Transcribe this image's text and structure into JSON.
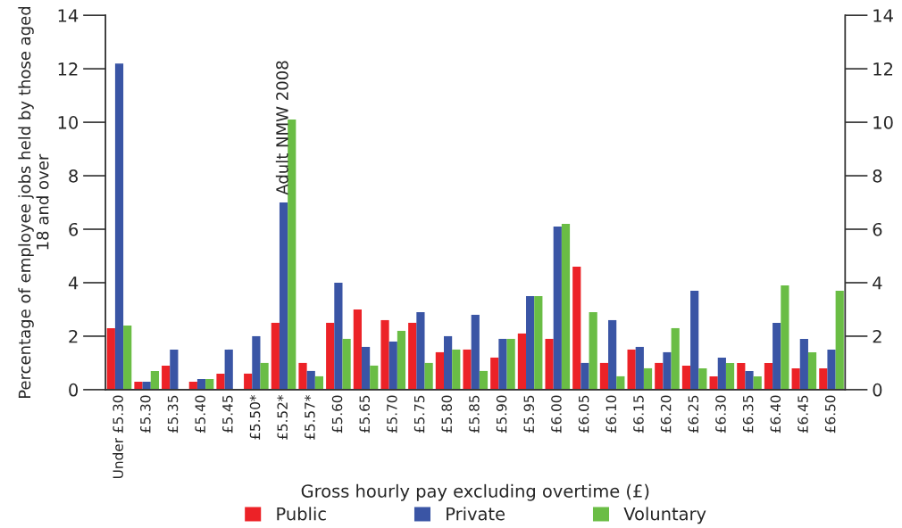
{
  "chart_data": {
    "type": "bar",
    "xlabel": "Gross hourly pay excluding overtime (£)",
    "ylabel": "Percentage of employee jobs held by those aged 18 and over",
    "categories": [
      "Under £5.30",
      "£5.30",
      "£5.35",
      "£5.40",
      "£5.45",
      "£5.50*",
      "£5.52*",
      "£5.57*",
      "£5.60",
      "£5.65",
      "£5.70",
      "£5.75",
      "£5.80",
      "£5.85",
      "£5.90",
      "£5.95",
      "£6.00",
      "£6.05",
      "£6.10",
      "£6.15",
      "£6.20",
      "£6.25",
      "£6.30",
      "£6.35",
      "£6.40",
      "£6.45",
      "£6.50"
    ],
    "series": [
      {
        "name": "Public",
        "color": "#ec2227",
        "values": [
          2.3,
          0.3,
          0.9,
          0.3,
          0.6,
          0.6,
          2.5,
          1.0,
          2.5,
          3.0,
          2.6,
          2.5,
          1.4,
          1.5,
          1.2,
          2.1,
          1.9,
          4.6,
          1.0,
          1.5,
          1.0,
          0.9,
          0.5,
          1.0,
          1.0,
          0.8,
          0.8
        ]
      },
      {
        "name": "Private",
        "color": "#3a55a5",
        "values": [
          12.2,
          0.3,
          1.5,
          0.4,
          1.5,
          2.0,
          7.0,
          0.7,
          4.0,
          1.6,
          1.8,
          2.9,
          2.0,
          2.8,
          1.9,
          3.5,
          6.1,
          1.0,
          2.6,
          1.6,
          1.4,
          3.7,
          1.2,
          0.7,
          2.5,
          1.9,
          1.5
        ]
      },
      {
        "name": "Voluntary",
        "color": "#6abd45",
        "values": [
          2.4,
          0.7,
          0,
          0.4,
          0,
          1.0,
          10.1,
          0.5,
          1.9,
          0.9,
          2.2,
          1.0,
          1.5,
          0.7,
          1.9,
          3.5,
          6.2,
          2.9,
          0.5,
          0.8,
          2.3,
          0.8,
          1.0,
          0.5,
          3.9,
          1.4,
          3.7
        ]
      }
    ],
    "annotations": [
      {
        "text": "Adult NMW 2008",
        "x": "£5.52*",
        "y": 7.0
      }
    ],
    "ylim": [
      0,
      14
    ],
    "yticks": [
      0,
      2,
      4,
      6,
      8,
      10,
      12,
      14
    ],
    "y2lim": [
      0,
      14
    ],
    "y2ticks": [
      0,
      2,
      4,
      6,
      8,
      10,
      12,
      14
    ],
    "grid": false,
    "legend": "bottom"
  }
}
